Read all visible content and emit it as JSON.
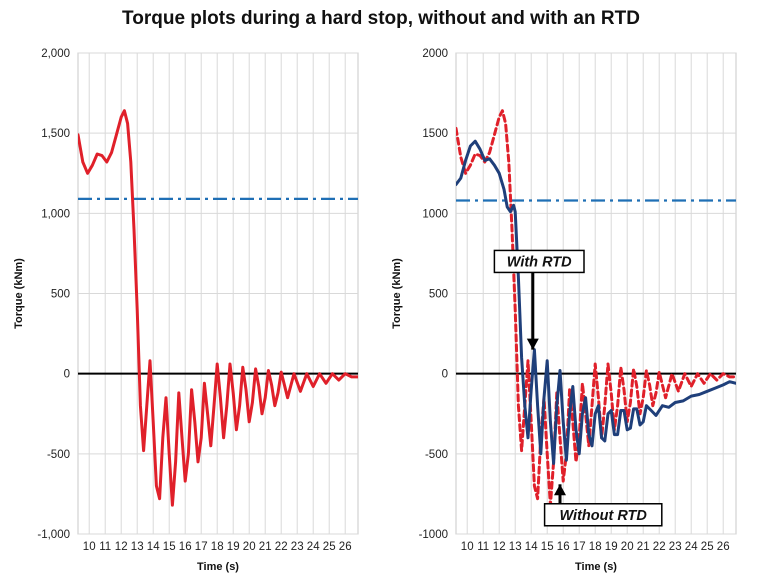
{
  "title": "Torque plots during a hard stop, without and with an RTD",
  "chart_data": [
    {
      "type": "line",
      "xlabel": "Time (s)",
      "ylabel": "Torque (kNm)",
      "xlim": [
        9.3,
        26.8
      ],
      "ylim": [
        -1000,
        2000
      ],
      "x_ticks": [
        10,
        11,
        12,
        13,
        14,
        15,
        16,
        17,
        18,
        19,
        20,
        21,
        22,
        23,
        24,
        25,
        26
      ],
      "y_ticks": [
        -1000,
        -500,
        0,
        500,
        1000,
        1500,
        2000
      ],
      "y_tick_labels": [
        "-1,000",
        "-500",
        "0",
        "500",
        "1,000",
        "1,500",
        "2,000"
      ],
      "grid": true,
      "reference_line": {
        "y": 1090,
        "style": "dash-dot",
        "color": "#1f6fb5"
      },
      "zero_line": {
        "y": 0,
        "color": "#000000"
      },
      "series": [
        {
          "color": "#e0202a",
          "style": "solid",
          "points": [
            [
              9.3,
              1490
            ],
            [
              9.6,
              1320
            ],
            [
              9.9,
              1250
            ],
            [
              10.2,
              1300
            ],
            [
              10.5,
              1370
            ],
            [
              10.8,
              1360
            ],
            [
              11.1,
              1320
            ],
            [
              11.4,
              1380
            ],
            [
              11.7,
              1490
            ],
            [
              12.0,
              1600
            ],
            [
              12.2,
              1640
            ],
            [
              12.4,
              1560
            ],
            [
              12.6,
              1320
            ],
            [
              12.8,
              900
            ],
            [
              13.0,
              400
            ],
            [
              13.2,
              -200
            ],
            [
              13.4,
              -480
            ],
            [
              13.6,
              -200
            ],
            [
              13.8,
              80
            ],
            [
              14.0,
              -300
            ],
            [
              14.2,
              -700
            ],
            [
              14.4,
              -780
            ],
            [
              14.6,
              -400
            ],
            [
              14.8,
              -150
            ],
            [
              15.0,
              -500
            ],
            [
              15.2,
              -820
            ],
            [
              15.4,
              -550
            ],
            [
              15.6,
              -120
            ],
            [
              15.8,
              -400
            ],
            [
              16.0,
              -670
            ],
            [
              16.2,
              -500
            ],
            [
              16.4,
              -100
            ],
            [
              16.6,
              -300
            ],
            [
              16.8,
              -550
            ],
            [
              17.0,
              -400
            ],
            [
              17.2,
              -60
            ],
            [
              17.4,
              -250
            ],
            [
              17.6,
              -450
            ],
            [
              17.8,
              -200
            ],
            [
              18.0,
              60
            ],
            [
              18.2,
              -150
            ],
            [
              18.4,
              -400
            ],
            [
              18.6,
              -200
            ],
            [
              18.8,
              60
            ],
            [
              19.0,
              -120
            ],
            [
              19.2,
              -350
            ],
            [
              19.4,
              -200
            ],
            [
              19.6,
              40
            ],
            [
              19.8,
              -100
            ],
            [
              20.0,
              -300
            ],
            [
              20.2,
              -180
            ],
            [
              20.4,
              30
            ],
            [
              20.6,
              -80
            ],
            [
              20.8,
              -250
            ],
            [
              21.0,
              -150
            ],
            [
              21.2,
              20
            ],
            [
              21.4,
              -70
            ],
            [
              21.6,
              -200
            ],
            [
              21.8,
              -120
            ],
            [
              22.0,
              10
            ],
            [
              22.4,
              -150
            ],
            [
              22.8,
              0
            ],
            [
              23.2,
              -110
            ],
            [
              23.6,
              0
            ],
            [
              24.0,
              -80
            ],
            [
              24.4,
              0
            ],
            [
              24.8,
              -60
            ],
            [
              25.2,
              0
            ],
            [
              25.6,
              -40
            ],
            [
              26.0,
              0
            ],
            [
              26.4,
              -20
            ],
            [
              26.8,
              -20
            ]
          ]
        }
      ]
    },
    {
      "type": "line",
      "xlabel": "Time (s)",
      "ylabel": "Torque (kNm)",
      "xlim": [
        9.3,
        26.8
      ],
      "ylim": [
        -1000,
        2000
      ],
      "x_ticks": [
        10,
        11,
        12,
        13,
        14,
        15,
        16,
        17,
        18,
        19,
        20,
        21,
        22,
        23,
        24,
        25,
        26
      ],
      "y_ticks": [
        -1000,
        -500,
        0,
        500,
        1000,
        1500,
        2000
      ],
      "y_tick_labels": [
        "-1000",
        "-500",
        "0",
        "500",
        "1000",
        "1500",
        "2000"
      ],
      "grid": true,
      "reference_line": {
        "y": 1080,
        "style": "dash-dot",
        "color": "#1f6fb5"
      },
      "zero_line": {
        "y": 0,
        "color": "#000000"
      },
      "annotations": [
        {
          "text": "With RTD",
          "x": 14.5,
          "y": 700,
          "arrow_to": [
            14.1,
            150
          ]
        },
        {
          "text": "Without RTD",
          "x": 18.5,
          "y": -880,
          "arrow_to": [
            15.8,
            -690
          ]
        }
      ],
      "series": [
        {
          "name": "Without RTD",
          "color": "#e0202a",
          "style": "dashed",
          "points": [
            [
              9.3,
              1530
            ],
            [
              9.6,
              1350
            ],
            [
              9.9,
              1250
            ],
            [
              10.2,
              1300
            ],
            [
              10.5,
              1370
            ],
            [
              10.8,
              1360
            ],
            [
              11.1,
              1320
            ],
            [
              11.4,
              1380
            ],
            [
              11.7,
              1490
            ],
            [
              12.0,
              1600
            ],
            [
              12.2,
              1640
            ],
            [
              12.4,
              1560
            ],
            [
              12.6,
              1320
            ],
            [
              12.8,
              900
            ],
            [
              13.0,
              400
            ],
            [
              13.2,
              -200
            ],
            [
              13.4,
              -480
            ],
            [
              13.6,
              -200
            ],
            [
              13.8,
              80
            ],
            [
              14.0,
              -300
            ],
            [
              14.2,
              -700
            ],
            [
              14.4,
              -780
            ],
            [
              14.6,
              -400
            ],
            [
              14.8,
              -150
            ],
            [
              15.0,
              -500
            ],
            [
              15.2,
              -820
            ],
            [
              15.4,
              -550
            ],
            [
              15.6,
              -120
            ],
            [
              15.8,
              -400
            ],
            [
              16.0,
              -670
            ],
            [
              16.2,
              -500
            ],
            [
              16.4,
              -100
            ],
            [
              16.6,
              -300
            ],
            [
              16.8,
              -550
            ],
            [
              17.0,
              -400
            ],
            [
              17.2,
              -60
            ],
            [
              17.4,
              -250
            ],
            [
              17.6,
              -450
            ],
            [
              17.8,
              -200
            ],
            [
              18.0,
              60
            ],
            [
              18.2,
              -150
            ],
            [
              18.4,
              -400
            ],
            [
              18.6,
              -200
            ],
            [
              18.8,
              60
            ],
            [
              19.0,
              -120
            ],
            [
              19.2,
              -350
            ],
            [
              19.4,
              -200
            ],
            [
              19.6,
              40
            ],
            [
              19.8,
              -100
            ],
            [
              20.0,
              -300
            ],
            [
              20.2,
              -180
            ],
            [
              20.4,
              30
            ],
            [
              20.6,
              -80
            ],
            [
              20.8,
              -250
            ],
            [
              21.0,
              -150
            ],
            [
              21.2,
              20
            ],
            [
              21.4,
              -70
            ],
            [
              21.6,
              -200
            ],
            [
              21.8,
              -120
            ],
            [
              22.0,
              10
            ],
            [
              22.4,
              -150
            ],
            [
              22.8,
              0
            ],
            [
              23.2,
              -110
            ],
            [
              23.6,
              0
            ],
            [
              24.0,
              -80
            ],
            [
              24.4,
              0
            ],
            [
              24.8,
              -60
            ],
            [
              25.2,
              0
            ],
            [
              25.6,
              -40
            ],
            [
              26.0,
              0
            ],
            [
              26.4,
              -20
            ],
            [
              26.8,
              -20
            ]
          ]
        },
        {
          "name": "With RTD",
          "color": "#1f3f7a",
          "style": "solid",
          "points": [
            [
              9.3,
              1180
            ],
            [
              9.6,
              1220
            ],
            [
              9.9,
              1330
            ],
            [
              10.2,
              1420
            ],
            [
              10.5,
              1450
            ],
            [
              10.8,
              1400
            ],
            [
              11.1,
              1330
            ],
            [
              11.4,
              1340
            ],
            [
              11.7,
              1300
            ],
            [
              12.0,
              1250
            ],
            [
              12.3,
              1150
            ],
            [
              12.5,
              1040
            ],
            [
              12.7,
              1010
            ],
            [
              12.9,
              1050
            ],
            [
              13.0,
              1010
            ],
            [
              13.2,
              600
            ],
            [
              13.4,
              100
            ],
            [
              13.6,
              -200
            ],
            [
              13.8,
              -400
            ],
            [
              14.0,
              -100
            ],
            [
              14.2,
              150
            ],
            [
              14.4,
              -200
            ],
            [
              14.6,
              -500
            ],
            [
              14.8,
              -150
            ],
            [
              15.0,
              80
            ],
            [
              15.2,
              -300
            ],
            [
              15.4,
              -560
            ],
            [
              15.6,
              -200
            ],
            [
              15.8,
              20
            ],
            [
              16.0,
              -300
            ],
            [
              16.2,
              -540
            ],
            [
              16.4,
              -250
            ],
            [
              16.6,
              -80
            ],
            [
              16.8,
              -350
            ],
            [
              17.0,
              -500
            ],
            [
              17.2,
              -250
            ],
            [
              17.4,
              -150
            ],
            [
              17.6,
              -380
            ],
            [
              17.8,
              -450
            ],
            [
              18.0,
              -250
            ],
            [
              18.2,
              -200
            ],
            [
              18.4,
              -400
            ],
            [
              18.6,
              -420
            ],
            [
              18.8,
              -250
            ],
            [
              19.0,
              -230
            ],
            [
              19.2,
              -380
            ],
            [
              19.4,
              -380
            ],
            [
              19.6,
              -230
            ],
            [
              19.8,
              -230
            ],
            [
              20.0,
              -350
            ],
            [
              20.2,
              -340
            ],
            [
              20.4,
              -220
            ],
            [
              20.6,
              -220
            ],
            [
              20.8,
              -320
            ],
            [
              21.0,
              -300
            ],
            [
              21.2,
              -200
            ],
            [
              21.5,
              -230
            ],
            [
              21.8,
              -260
            ],
            [
              22.2,
              -200
            ],
            [
              22.6,
              -210
            ],
            [
              23.0,
              -180
            ],
            [
              23.5,
              -170
            ],
            [
              24.0,
              -140
            ],
            [
              24.5,
              -130
            ],
            [
              25.0,
              -110
            ],
            [
              25.5,
              -90
            ],
            [
              26.0,
              -70
            ],
            [
              26.4,
              -50
            ],
            [
              26.8,
              -60
            ]
          ]
        }
      ]
    }
  ]
}
